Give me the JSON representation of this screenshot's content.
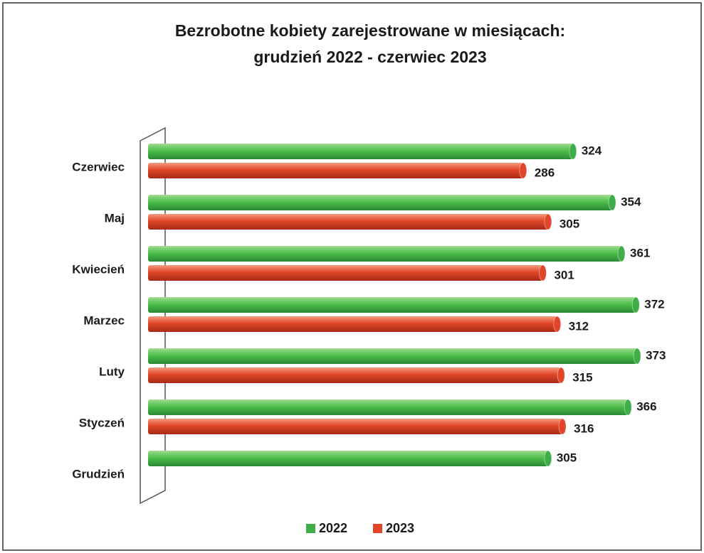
{
  "chart_data": {
    "type": "bar",
    "orientation": "horizontal",
    "title": "Bezrobotne kobiety zarejestrowane w miesiącach:",
    "subtitle": "grudzień 2022 - czerwiec 2023",
    "categories": [
      "Czerwiec",
      "Maj",
      "Kwiecień",
      "Marzec",
      "Luty",
      "Styczeń",
      "Grudzień"
    ],
    "series": [
      {
        "name": "2022",
        "color": "#3fae49",
        "values": [
          324,
          354,
          361,
          372,
          373,
          366,
          305
        ]
      },
      {
        "name": "2023",
        "color": "#e2462a",
        "values": [
          286,
          305,
          301,
          312,
          315,
          316,
          null
        ]
      }
    ],
    "xlim": [
      0,
      380
    ],
    "legend": "bottom"
  }
}
